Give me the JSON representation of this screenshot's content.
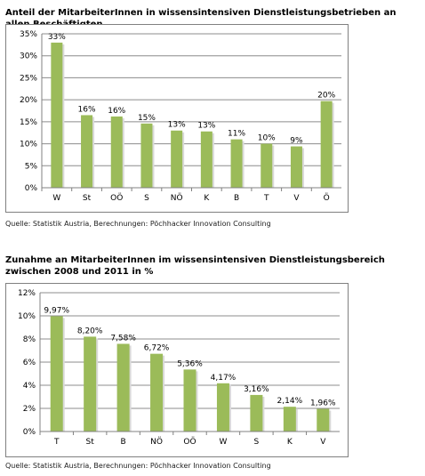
{
  "chart_data": [
    {
      "type": "bar",
      "title": "Anteil der MitarbeiterInnen in wissensintensiven Dienstleistungsbetrieben an allen Beschäftigten",
      "categories": [
        "W",
        "St",
        "OÖ",
        "S",
        "NÖ",
        "K",
        "B",
        "T",
        "V",
        "Ö"
      ],
      "values": [
        33,
        16.5,
        16.2,
        14.6,
        13.0,
        12.8,
        11.0,
        10.0,
        9.4,
        19.7
      ],
      "data_labels": [
        "33%",
        "16%",
        "16%",
        "15%",
        "13%",
        "13%",
        "11%",
        "10%",
        "9%",
        "20%"
      ],
      "ylim": [
        0,
        35
      ],
      "ytick_labels": [
        "0%",
        "5%",
        "10%",
        "15%",
        "20%",
        "25%",
        "30%",
        "35%"
      ],
      "grid": true,
      "bar_color": "#9BBB59",
      "source": "Quelle: Statistik Austria, Berechnungen: Pöchhacker Innovation Consulting"
    },
    {
      "type": "bar",
      "title": "Zunahme an MitarbeiterInnen im wissensintensiven Dienstleistungsbereich zwischen 2008 und 2011 in %",
      "categories": [
        "T",
        "St",
        "B",
        "NÖ",
        "OÖ",
        "W",
        "S",
        "K",
        "V"
      ],
      "values": [
        9.97,
        8.2,
        7.58,
        6.72,
        5.36,
        4.17,
        3.16,
        2.14,
        1.96
      ],
      "data_labels": [
        "9,97%",
        "8,20%",
        "7,58%",
        "6,72%",
        "5,36%",
        "4,17%",
        "3,16%",
        "2,14%",
        "1,96%"
      ],
      "ylim": [
        0,
        12
      ],
      "ytick_labels": [
        "0%",
        "2%",
        "4%",
        "6%",
        "8%",
        "10%",
        "12%"
      ],
      "grid": true,
      "bar_color": "#9BBB59",
      "source": "Quelle: Statistik Austria, Berechnungen: Pöchhacker Innovation Consulting"
    }
  ]
}
